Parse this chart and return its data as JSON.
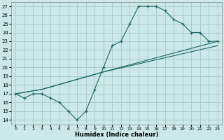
{
  "xlabel": "Humidex (Indice chaleur)",
  "bg_color": "#cce8e8",
  "grid_color": "#aacccc",
  "line_color": "#1a6666",
  "line1_x": [
    0,
    1,
    2,
    3,
    4,
    5,
    6,
    7,
    8,
    9,
    10,
    11,
    12,
    13,
    14,
    15,
    16,
    17,
    18,
    19,
    20,
    21,
    22,
    23
  ],
  "line1_y": [
    17.0,
    16.5,
    17.0,
    17.0,
    16.5,
    16.0,
    15.0,
    14.0,
    15.0,
    17.5,
    20.0,
    22.5,
    23.0,
    25.0,
    27.0,
    27.0,
    27.0,
    26.5,
    25.5,
    25.0,
    24.0,
    24.0,
    23.0,
    23.0
  ],
  "line2_x": [
    0,
    3,
    10,
    23
  ],
  "line2_y": [
    17.0,
    17.5,
    19.5,
    22.5
  ],
  "line3_x": [
    0,
    3,
    10,
    23
  ],
  "line3_y": [
    17.0,
    17.5,
    19.5,
    23.0
  ],
  "xlim": [
    -0.5,
    23.5
  ],
  "ylim": [
    13.5,
    27.5
  ],
  "xticks": [
    0,
    1,
    2,
    3,
    4,
    5,
    6,
    7,
    8,
    9,
    10,
    11,
    12,
    13,
    14,
    15,
    16,
    17,
    18,
    19,
    20,
    21,
    22,
    23
  ],
  "yticks": [
    14,
    15,
    16,
    17,
    18,
    19,
    20,
    21,
    22,
    23,
    24,
    25,
    26,
    27
  ]
}
